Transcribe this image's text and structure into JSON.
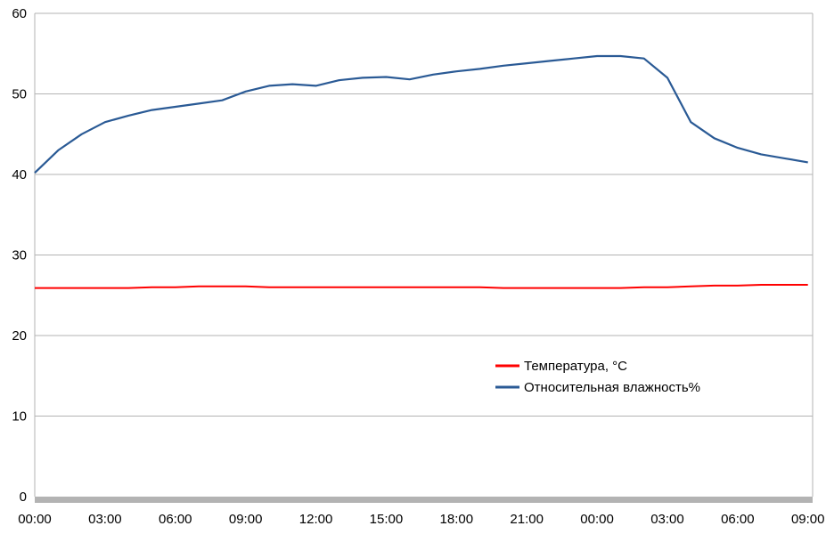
{
  "chart_data": {
    "type": "line",
    "title": "",
    "xlabel": "",
    "ylabel": "",
    "ylim": [
      0,
      60
    ],
    "yticks": [
      "0",
      "10",
      "20",
      "30",
      "40",
      "50",
      "60"
    ],
    "xticks": [
      "00:00",
      "03:00",
      "06:00",
      "09:00",
      "12:00",
      "15:00",
      "18:00",
      "21:00",
      "00:00",
      "03:00",
      "06:00",
      "09:00"
    ],
    "grid": "horizontal",
    "legend_position": "right-center",
    "x_hours": [
      0,
      1,
      2,
      3,
      4,
      5,
      6,
      7,
      8,
      9,
      10,
      11,
      12,
      13,
      14,
      15,
      16,
      17,
      18,
      19,
      20,
      21,
      22,
      23,
      24,
      25,
      26,
      27,
      28,
      29,
      30,
      31,
      32,
      33
    ],
    "series": [
      {
        "name": "Температура, °C",
        "color": "#ff0000",
        "values": [
          25.9,
          25.9,
          25.9,
          25.9,
          25.9,
          26.0,
          26.0,
          26.1,
          26.1,
          26.1,
          26.0,
          26.0,
          26.0,
          26.0,
          26.0,
          26.0,
          26.0,
          26.0,
          26.0,
          26.0,
          25.9,
          25.9,
          25.9,
          25.9,
          25.9,
          25.9,
          26.0,
          26.0,
          26.1,
          26.2,
          26.2,
          26.3,
          26.3,
          26.3
        ]
      },
      {
        "name": "Относительная влажность%",
        "color": "#2a5a95",
        "values": [
          40.2,
          43.0,
          45.0,
          46.5,
          47.3,
          48.0,
          48.4,
          48.8,
          49.2,
          50.3,
          51.0,
          51.2,
          51.0,
          51.7,
          52.0,
          52.1,
          51.8,
          52.4,
          52.8,
          53.1,
          53.5,
          53.8,
          54.1,
          54.4,
          54.7,
          54.7,
          54.4,
          52.0,
          46.5,
          44.5,
          43.3,
          42.5,
          42.0,
          41.5
        ]
      }
    ]
  }
}
